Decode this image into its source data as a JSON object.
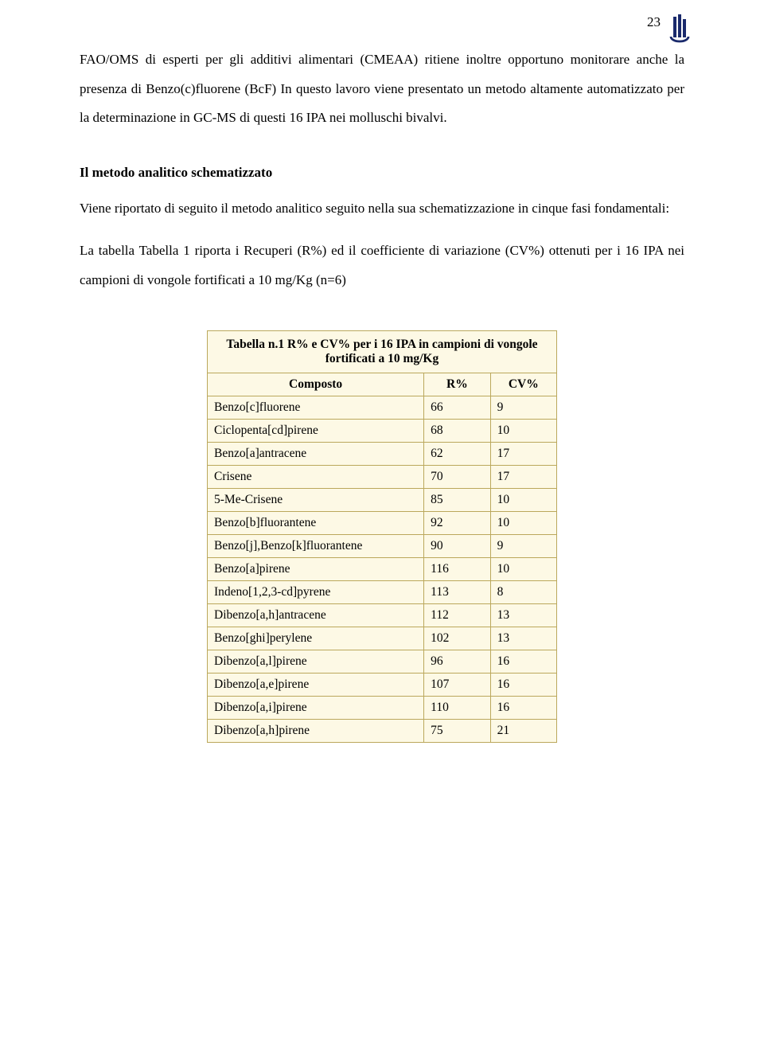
{
  "page_number": "23",
  "para1": "FAO/OMS di esperti per gli additivi alimentari (CMEAA) ritiene inoltre opportuno monitorare anche la presenza di Benzo(c)fluorene (BcF) In questo lavoro viene presentato un metodo altamente automatizzato per la determinazione in GC-MS di questi 16 IPA nei molluschi bivalvi.",
  "section_heading": "Il metodo analitico schematizzato",
  "para2": "Viene riportato di seguito il metodo analitico seguito nella sua schematizzazione in cinque fasi fondamentali:",
  "para3": "La tabella Tabella 1 riporta i Recuperi (R%) ed il coefficiente di variazione (CV%) ottenuti per i 16 IPA nei campioni di vongole fortificati a 10 mg/Kg (n=6)",
  "table": {
    "caption": "Tabella n.1 R% e CV% per i 16 IPA in campioni di vongole fortificati a 10 mg/Kg",
    "columns": [
      "Composto",
      "R%",
      "CV%"
    ],
    "rows": [
      [
        "Benzo[c]fluorene",
        "66",
        "9"
      ],
      [
        "Ciclopenta[cd]pirene",
        "68",
        "10"
      ],
      [
        "Benzo[a]antracene",
        "62",
        "17"
      ],
      [
        "Crisene",
        "70",
        "17"
      ],
      [
        "5-Me-Crisene",
        "85",
        "10"
      ],
      [
        "Benzo[b]fluorantene",
        "92",
        "10"
      ],
      [
        "Benzo[j],Benzo[k]fluorantene",
        "90",
        "9"
      ],
      [
        "Benzo[a]pirene",
        "116",
        "10"
      ],
      [
        "Indeno[1,2,3-cd]pyrene",
        "113",
        "8"
      ],
      [
        "Dibenzo[a,h]antracene",
        "112",
        "13"
      ],
      [
        "Benzo[ghi]perylene",
        "102",
        "13"
      ],
      [
        "Dibenzo[a,l]pirene",
        "96",
        "16"
      ],
      [
        "Dibenzo[a,e]pirene",
        "107",
        "16"
      ],
      [
        "Dibenzo[a,i]pirene",
        "110",
        "16"
      ],
      [
        "Dibenzo[a,h]pirene",
        "75",
        "21"
      ]
    ],
    "bg_color": "#fdf9e5",
    "border_color": "#bba85c",
    "cell_fontsize": 15.5
  },
  "colors": {
    "text": "#000000",
    "page_bg": "#ffffff",
    "logo_primary": "#1a2a6c",
    "logo_accent": "#3b4a9c"
  }
}
